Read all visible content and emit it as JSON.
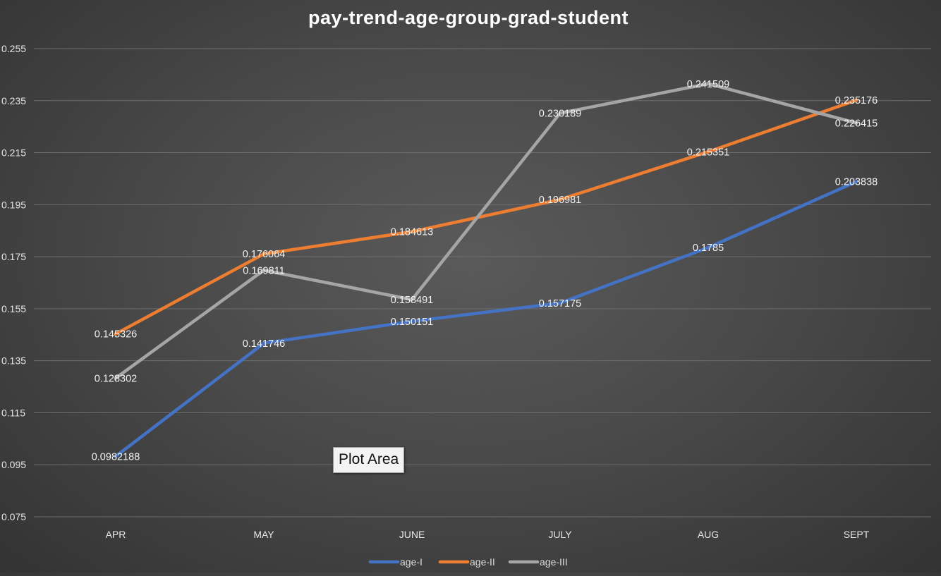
{
  "chart_data": {
    "type": "line",
    "title": "pay-trend-age-group-grad-student",
    "categories": [
      "APR",
      "MAY",
      "JUNE",
      "JULY",
      "AUG",
      "SEPT"
    ],
    "ylim": [
      0.075,
      0.255
    ],
    "yticks": [
      "0.255",
      "0.235",
      "0.215",
      "0.195",
      "0.175",
      "0.155",
      "0.135",
      "0.115",
      "0.095",
      "0.075"
    ],
    "grid": true,
    "legend_position": "bottom",
    "series": [
      {
        "name": "age-I",
        "color": "#4472C4",
        "values": [
          0.0982188,
          0.141746,
          0.150151,
          0.157175,
          0.1785,
          0.203838
        ],
        "labels": [
          "0.0982188",
          "0.141746",
          "0.150151",
          "0.157175",
          "0.1785",
          "0.203838"
        ]
      },
      {
        "name": "age-II",
        "color": "#ED7D31",
        "values": [
          0.145326,
          0.176064,
          0.184613,
          0.196981,
          0.215351,
          0.235176
        ],
        "labels": [
          "0.145326",
          "0.176064",
          "0.184613",
          "0.196981",
          "0.215351",
          "0.235176"
        ]
      },
      {
        "name": "age-III",
        "color": "#A5A5A5",
        "values": [
          0.128302,
          0.169811,
          0.158491,
          0.230189,
          0.241509,
          0.226415
        ],
        "labels": [
          "0.128302",
          "0.169811",
          "0.158491",
          "0.230189",
          "0.241509",
          "0.226415"
        ]
      }
    ]
  },
  "tooltip": {
    "text": "Plot Area"
  }
}
